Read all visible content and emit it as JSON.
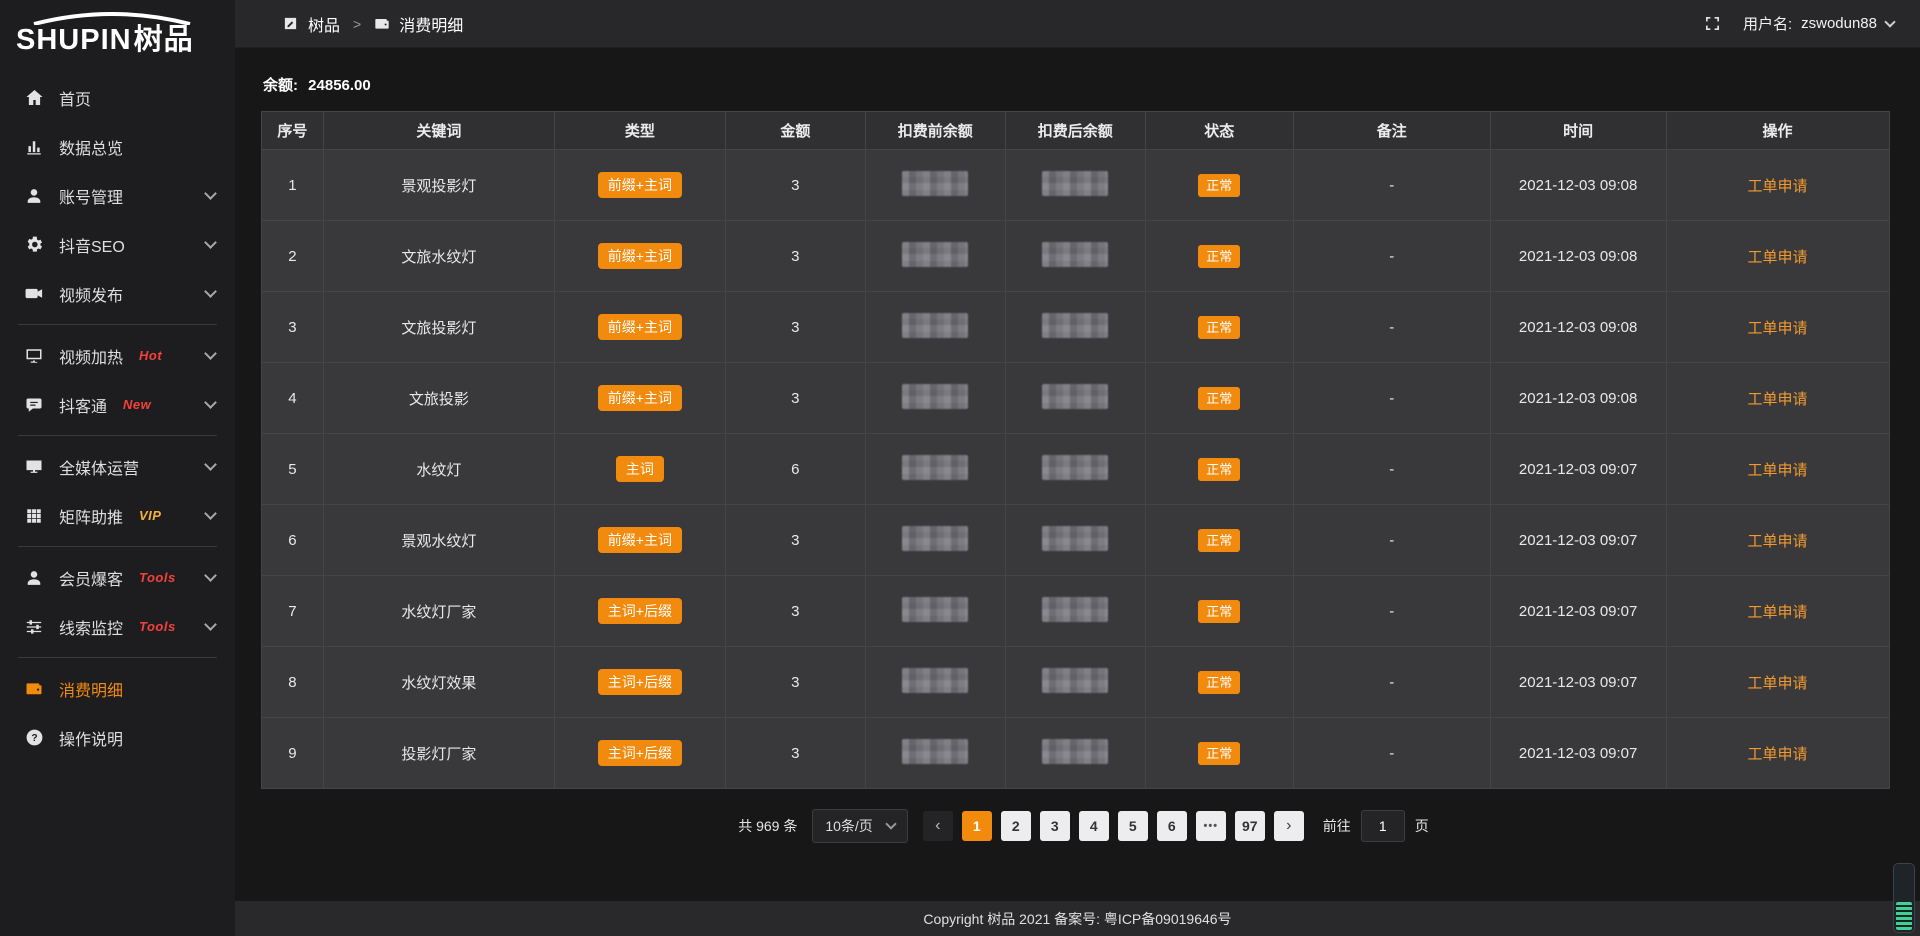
{
  "app": {
    "logo_en": "SHUPIN",
    "logo_zh": "树品"
  },
  "header": {
    "breadcrumb_app": "树品",
    "breadcrumb_sep": ">",
    "breadcrumb_page": "消费明细",
    "username_label": "用户名:",
    "username": "zswodun88"
  },
  "sidebar": {
    "items": [
      {
        "id": "home",
        "icon": "home",
        "label": "首页"
      },
      {
        "id": "data-overview",
        "icon": "chart",
        "label": "数据总览"
      },
      {
        "id": "account",
        "icon": "user",
        "label": "账号管理",
        "chevron": true
      },
      {
        "id": "douyin-seo",
        "icon": "gear",
        "label": "抖音SEO",
        "chevron": true
      },
      {
        "id": "video-publish",
        "icon": "video",
        "label": "视频发布",
        "chevron": true
      },
      {
        "divider": true
      },
      {
        "id": "video-heat",
        "icon": "display",
        "label": "视频加热",
        "tag": "Hot",
        "tag_color": "red",
        "chevron": true
      },
      {
        "id": "douketong",
        "icon": "chat",
        "label": "抖客通",
        "tag": "New",
        "tag_color": "red",
        "chevron": true
      },
      {
        "divider": true
      },
      {
        "id": "media-operation",
        "icon": "monitor",
        "label": "全媒体运营",
        "chevron": true
      },
      {
        "id": "matrix-boost",
        "icon": "grid",
        "label": "矩阵助推",
        "tag": "VIP",
        "tag_color": "orange",
        "chevron": true
      },
      {
        "divider": true
      },
      {
        "id": "member-baoke",
        "icon": "user",
        "label": "会员爆客",
        "tag": "Tools",
        "tag_color": "red",
        "chevron": true
      },
      {
        "id": "clue-monitor",
        "icon": "sliders",
        "label": "线索监控",
        "tag": "Tools",
        "tag_color": "red",
        "chevron": true
      },
      {
        "divider": true
      },
      {
        "id": "consume-detail",
        "icon": "wallet",
        "label": "消费明细",
        "active": true
      },
      {
        "id": "help",
        "icon": "question",
        "label": "操作说明"
      }
    ]
  },
  "main": {
    "balance_label": "余额:",
    "balance_value": "24856.00",
    "table": {
      "columns": [
        "序号",
        "关键词",
        "类型",
        "金额",
        "扣费前余额",
        "扣费后余额",
        "状态",
        "备注",
        "时间",
        "操作"
      ],
      "rows": [
        {
          "no": "1",
          "keyword": "景观投影灯",
          "type": "前缀+主词",
          "amount": "3",
          "pre_balance_masked": true,
          "post_balance_masked": true,
          "status": "正常",
          "remark": "-",
          "time": "2021-12-03 09:08",
          "action": "工单申请"
        },
        {
          "no": "2",
          "keyword": "文旅水纹灯",
          "type": "前缀+主词",
          "amount": "3",
          "pre_balance_masked": true,
          "post_balance_masked": true,
          "status": "正常",
          "remark": "-",
          "time": "2021-12-03 09:08",
          "action": "工单申请"
        },
        {
          "no": "3",
          "keyword": "文旅投影灯",
          "type": "前缀+主词",
          "amount": "3",
          "pre_balance_masked": true,
          "post_balance_masked": true,
          "status": "正常",
          "remark": "-",
          "time": "2021-12-03 09:08",
          "action": "工单申请"
        },
        {
          "no": "4",
          "keyword": "文旅投影",
          "type": "前缀+主词",
          "amount": "3",
          "pre_balance_masked": true,
          "post_balance_masked": true,
          "status": "正常",
          "remark": "-",
          "time": "2021-12-03 09:08",
          "action": "工单申请"
        },
        {
          "no": "5",
          "keyword": "水纹灯",
          "type": "主词",
          "amount": "6",
          "pre_balance_masked": true,
          "post_balance_masked": true,
          "status": "正常",
          "remark": "-",
          "time": "2021-12-03 09:07",
          "action": "工单申请"
        },
        {
          "no": "6",
          "keyword": "景观水纹灯",
          "type": "前缀+主词",
          "amount": "3",
          "pre_balance_masked": true,
          "post_balance_masked": true,
          "status": "正常",
          "remark": "-",
          "time": "2021-12-03 09:07",
          "action": "工单申请"
        },
        {
          "no": "7",
          "keyword": "水纹灯厂家",
          "type": "主词+后缀",
          "amount": "3",
          "pre_balance_masked": true,
          "post_balance_masked": true,
          "status": "正常",
          "remark": "-",
          "time": "2021-12-03 09:07",
          "action": "工单申请"
        },
        {
          "no": "8",
          "keyword": "水纹灯效果",
          "type": "主词+后缀",
          "amount": "3",
          "pre_balance_masked": true,
          "post_balance_masked": true,
          "status": "正常",
          "remark": "-",
          "time": "2021-12-03 09:07",
          "action": "工单申请"
        },
        {
          "no": "9",
          "keyword": "投影灯厂家",
          "type": "主词+后缀",
          "amount": "3",
          "pre_balance_masked": true,
          "post_balance_masked": true,
          "status": "正常",
          "remark": "-",
          "time": "2021-12-03 09:07",
          "action": "工单申请"
        }
      ]
    },
    "pagination": {
      "total": "共 969 条",
      "page_size": "10条/页",
      "prev_icon": "‹",
      "next_icon": "›",
      "pages": [
        "1",
        "2",
        "3",
        "4",
        "5",
        "6",
        "•••",
        "97"
      ],
      "active_page": "1",
      "goto_label": "前往",
      "goto_value": "1",
      "goto_unit": "页"
    }
  },
  "footer": {
    "copyright": "Copyright 树品 2021 备案号: 粤ICP备09019646号"
  },
  "colors": {
    "accent": "#f28a0d",
    "tag_red": "#f5413d",
    "tag_vip": "#f7b13d",
    "status_badge": "#f28a0d"
  }
}
